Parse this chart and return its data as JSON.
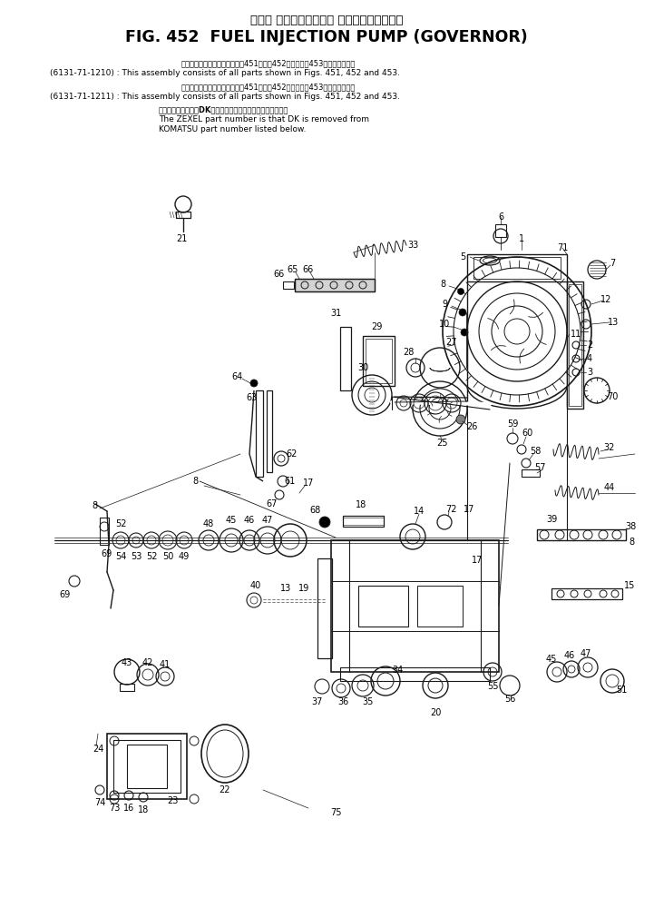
{
  "title_jp": "フェル インジェクション ポンプ　ガ　バ　ナ",
  "title_en": "FIG. 452  FUEL INJECTION PUMP (GOVERNOR)",
  "note1_part": "(6131-71-1210) :",
  "note1_jp": "このアセンブリの構成部品は第451図、第452図および第453図を含みます。",
  "note1_en": "This assembly consists of all parts shown in Figs. 451, 452 and 453.",
  "note2_part": "(6131-71-1211) :",
  "note2_jp": "このアセンブリの構成部品は第451図、第452図および第453図を含みます。",
  "note2_en": "This assembly consists of all parts shown in Figs. 451, 452 and 453.",
  "note3_jp": "品番のメーカー記号DKを備えたものがゼクセルの品番です。",
  "note3_en1": "The ZEXEL part number is that DK is removed from",
  "note3_en2": "KOMATSU part number listed below.",
  "bg_color": "#ffffff",
  "text_color": "#000000",
  "line_color": "#1a1a1a"
}
